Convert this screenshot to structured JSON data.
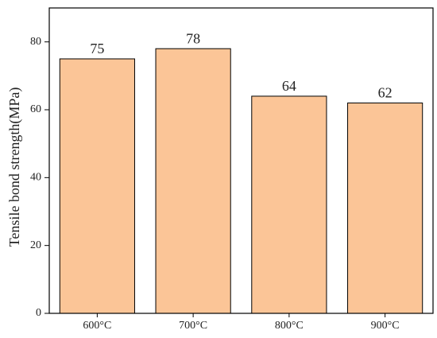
{
  "chart_data": {
    "type": "bar",
    "y_label": "Tensile bond strength(MPa)",
    "categories": [
      "600°C",
      "700°C",
      "800°C",
      "900°C"
    ],
    "values": [
      75,
      78,
      64,
      62
    ],
    "color": "#fbc597",
    "ylim": [
      0,
      90
    ],
    "yticks": [
      0,
      20,
      40,
      60,
      80
    ]
  }
}
